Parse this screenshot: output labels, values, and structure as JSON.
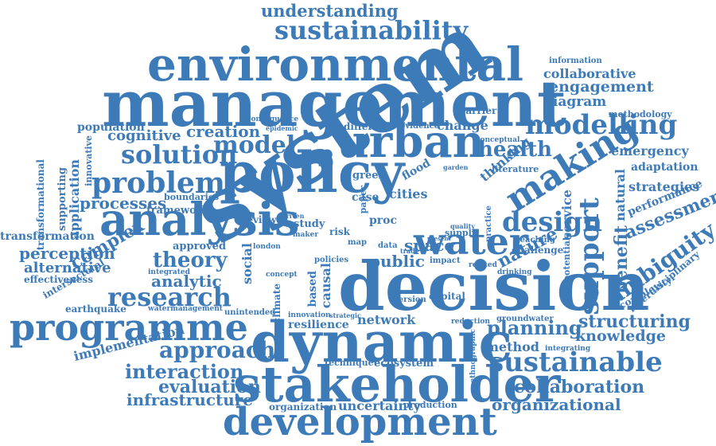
{
  "colors": {
    "text": "#3d7ab8",
    "text_light": "#5a8fc4",
    "text_dark": "#2f6aa8",
    "background": "#ffffff"
  },
  "words": {
    "system": "system",
    "decision": "decision",
    "management": "management",
    "environmental": "environmental",
    "policy": "policy",
    "analysis": "analysis",
    "dynamic": "dynamic",
    "stakeholder": "stakeholder",
    "development": "development",
    "programme": "programme",
    "urban": "urban",
    "problem": "problem",
    "water": "water",
    "sustainability": "sustainability",
    "understanding": "understanding",
    "making": "making",
    "modelling": "modelling",
    "model": "model",
    "health": "health",
    "design": "design",
    "support": "support",
    "research": "research",
    "theory": "theory",
    "solution": "solution",
    "creation": "creation",
    "cognitive": "cognitive",
    "population": "population",
    "processes": "processes",
    "perception": "perception",
    "alternative": "alternative",
    "complex": "complex",
    "analytic": "analytic",
    "approach": "approach",
    "interaction": "interaction",
    "evaluation": "evaluation",
    "infrastructure": "infrastructure",
    "sustainable": "sustainable",
    "collaboration": "collaboration",
    "organizational": "organizational",
    "planning": "planning",
    "knowledge": "knowledge",
    "structuring": "structuring",
    "method": "method",
    "ambiguity": "ambiguity",
    "assessment": "assessment",
    "benefit": "benefit",
    "emergency": "emergency",
    "adaptation": "adaptation",
    "strategies": "strategies",
    "performance": "performance",
    "engagement": "engagement",
    "collaborative": "collaborative",
    "diagram": "diagram",
    "information": "information",
    "methodology": "methodology",
    "change": "change",
    "space": "space",
    "network": "network",
    "uncertainty": "uncertainty",
    "organization": "organization",
    "production": "production",
    "ecosystem": "ecosystem",
    "technique": "technique",
    "resilience": "resilience",
    "framework": "framework",
    "transformation": "transformation",
    "effectiveness": "effectiveness",
    "implementation": "implementation",
    "earthquake": "earthquake",
    "intersectoral": "intersectoral",
    "watermanagement": "watermanagement",
    "interdisciplinary": "interdisciplinary",
    "complexity": "complexity",
    "natural": "natural",
    "service": "service",
    "nature": "nature",
    "challenge": "challenge",
    "thinking": "thinking",
    "literature": "literature",
    "public": "public",
    "social": "social",
    "approved": "approved",
    "boundaries": "boundaries",
    "application": "application",
    "supporting": "supporting",
    "transformational": "transformational",
    "innovative": "innovative",
    "different": "different",
    "evidence": "evidence",
    "consequence": "consequence",
    "epidemic": "epidemic",
    "barrier": "barrier",
    "conceptual": "conceptual",
    "cities": "cities",
    "flood": "flood",
    "green": "green",
    "case": "case",
    "causal": "causal",
    "based": "based",
    "study": "study",
    "review": "review",
    "climate": "climate",
    "policies": "policies",
    "integrated": "integrated",
    "supply": "supply",
    "drinking": "drinking",
    "potential": "potential",
    "teaching": "teaching",
    "capital": "capital",
    "version": "version",
    "reduction": "reduction",
    "groundwater": "groundwater",
    "integrating": "integrating",
    "ethnographic": "ethnographic",
    "strategic": "strategic",
    "innovation": "innovation",
    "unintended": "unintended",
    "impact": "impact",
    "related": "related",
    "concept": "concept",
    "driven": "driven",
    "risk": "risk",
    "garden": "garden",
    "proc": "proc",
    "trade": "trade",
    "data": "data",
    "paper": "paper",
    "present": "present",
    "quality": "quality",
    "practice": "practice",
    "map": "map",
    "maker": "maker",
    "london": "london"
  }
}
